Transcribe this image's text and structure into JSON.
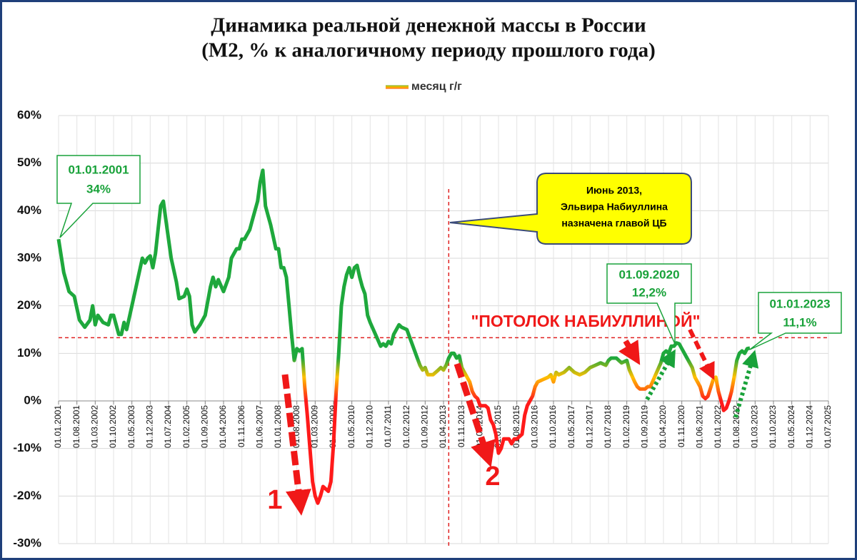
{
  "chart_data": {
    "type": "line",
    "title": [
      "Динамика реальной денежной массы в России",
      "(М2, % к аналогичному периоду прошлого года)"
    ],
    "legend": "top",
    "grid": true,
    "color_scale": [
      {
        "value": 9,
        "color": "#1ea83c"
      },
      {
        "value": 5,
        "color": "#ffc000"
      },
      {
        "value": 0,
        "color": "#ff1a1a"
      }
    ],
    "ylim": [
      -30,
      60
    ],
    "yticks": [
      {
        "value": -30,
        "label": "-30%"
      },
      {
        "value": -20,
        "label": "-20%"
      },
      {
        "value": -10,
        "label": "-10%"
      },
      {
        "value": 0,
        "label": "0%"
      },
      {
        "value": 10,
        "label": "10%"
      },
      {
        "value": 20,
        "label": "20%"
      },
      {
        "value": 30,
        "label": "30%"
      },
      {
        "value": 40,
        "label": "40%"
      },
      {
        "value": 50,
        "label": "50%"
      },
      {
        "value": 60,
        "label": "60%"
      }
    ],
    "xlim": [
      "01.01.2001",
      "01.07.2025"
    ],
    "xticks": [
      "01.01.2001",
      "01.08.2001",
      "01.03.2002",
      "01.10.2002",
      "01.05.2003",
      "01.12.2003",
      "01.07.2004",
      "01.02.2005",
      "01.09.2005",
      "01.04.2006",
      "01.11.2006",
      "01.06.2007",
      "01.01.2008",
      "01.08.2008",
      "01.03.2009",
      "01.10.2009",
      "01.05.2010",
      "01.12.2010",
      "01.07.2011",
      "01.02.2012",
      "01.09.2012",
      "01.04.2013",
      "01.11.2013",
      "01.06.2014",
      "01.01.2015",
      "01.08.2015",
      "01.03.2016",
      "01.10.2016",
      "01.05.2017",
      "01.12.2017",
      "01.07.2018",
      "01.02.2019",
      "01.09.2019",
      "01.04.2020",
      "01.11.2020",
      "01.06.2021",
      "01.01.2022",
      "01.08.2022",
      "01.03.2023",
      "01.10.2023",
      "01.05.2024",
      "01.12.2024",
      "01.07.2025"
    ],
    "x": [
      "01.01.2001",
      "01.03.2001",
      "01.05.2001",
      "01.07.2001",
      "01.09.2001",
      "01.11.2001",
      "01.01.2002",
      "01.02.2002",
      "01.03.2002",
      "01.04.2002",
      "01.06.2002",
      "01.08.2002",
      "01.09.2002",
      "01.10.2002",
      "01.12.2002",
      "01.01.2003",
      "01.02.2003",
      "01.03.2003",
      "01.05.2003",
      "01.07.2003",
      "01.09.2003",
      "01.10.2003",
      "01.11.2003",
      "01.12.2003",
      "01.01.2004",
      "01.02.2004",
      "01.03.2004",
      "01.04.2004",
      "01.05.2004",
      "01.06.2004",
      "01.08.2004",
      "01.10.2004",
      "01.11.2004",
      "01.01.2005",
      "01.02.2005",
      "01.03.2005",
      "01.04.2005",
      "01.05.2005",
      "01.07.2005",
      "01.09.2005",
      "01.11.2005",
      "01.12.2005",
      "01.01.2006",
      "01.02.2006",
      "01.04.2006",
      "01.06.2006",
      "01.07.2006",
      "01.09.2006",
      "01.10.2006",
      "01.11.2006",
      "01.12.2006",
      "01.02.2007",
      "01.03.2007",
      "01.05.2007",
      "01.06.2007",
      "01.07.2007",
      "01.08.2007",
      "01.09.2007",
      "01.10.2007",
      "01.12.2007",
      "01.01.2008",
      "01.02.2008",
      "01.03.2008",
      "01.04.2008",
      "01.05.2008",
      "01.06.2008",
      "01.07.2008",
      "01.08.2008",
      "01.09.2008",
      "01.10.2008",
      "01.11.2008",
      "01.12.2008",
      "01.01.2009",
      "01.02.2009",
      "01.03.2009",
      "01.04.2009",
      "01.05.2009",
      "01.06.2009",
      "01.08.2009",
      "01.09.2009",
      "01.10.2009",
      "01.11.2009",
      "01.12.2009",
      "01.01.2010",
      "01.02.2010",
      "01.03.2010",
      "01.04.2010",
      "01.05.2010",
      "01.06.2010",
      "01.07.2010",
      "01.08.2010",
      "01.09.2010",
      "01.10.2010",
      "01.11.2010",
      "01.12.2010",
      "01.02.2011",
      "01.04.2011",
      "01.05.2011",
      "01.06.2011",
      "01.07.2011",
      "01.08.2011",
      "01.09.2011",
      "01.11.2011",
      "01.12.2011",
      "01.02.2012",
      "01.04.2012",
      "01.06.2012",
      "01.07.2012",
      "01.08.2012",
      "01.09.2012",
      "01.10.2012",
      "01.12.2012",
      "01.02.2013",
      "01.03.2013",
      "01.04.2013",
      "01.05.2013",
      "01.06.2013",
      "01.07.2013",
      "01.08.2013",
      "01.09.2013",
      "01.10.2013",
      "01.11.2013",
      "01.12.2013",
      "01.02.2014",
      "01.03.2014",
      "01.04.2014",
      "01.05.2014",
      "01.06.2014",
      "01.07.2014",
      "01.08.2014",
      "01.09.2014",
      "01.10.2014",
      "01.11.2014",
      "01.12.2014",
      "01.01.2015",
      "01.02.2015",
      "01.03.2015",
      "01.05.2015",
      "01.06.2015",
      "01.07.2015",
      "01.08.2015",
      "01.10.2015",
      "01.11.2015",
      "01.12.2015",
      "01.01.2016",
      "01.02.2016",
      "01.03.2016",
      "01.04.2016",
      "01.06.2016",
      "01.08.2016",
      "01.09.2016",
      "01.10.2016",
      "01.11.2016",
      "01.12.2016",
      "01.02.2017",
      "01.04.2017",
      "01.06.2017",
      "01.08.2017",
      "01.10.2017",
      "01.12.2017",
      "01.02.2018",
      "01.04.2018",
      "01.06.2018",
      "01.07.2018",
      "01.08.2018",
      "01.10.2018",
      "01.12.2018",
      "01.02.2019",
      "01.03.2019",
      "01.05.2019",
      "01.06.2019",
      "01.07.2019",
      "01.09.2019",
      "01.10.2019",
      "01.11.2019",
      "01.01.2020",
      "01.03.2020",
      "01.04.2020",
      "01.05.2020",
      "01.06.2020",
      "01.07.2020",
      "01.08.2020",
      "01.09.2020",
      "01.10.2020",
      "01.11.2020",
      "01.01.2021",
      "01.02.2021",
      "01.03.2021",
      "01.04.2021",
      "01.06.2021",
      "01.07.2021",
      "01.08.2021",
      "01.09.2021",
      "01.11.2021",
      "01.12.2021",
      "01.01.2022",
      "01.02.2022",
      "01.03.2022",
      "01.04.2022",
      "01.05.2022",
      "01.06.2022",
      "01.07.2022",
      "01.08.2022",
      "01.09.2022",
      "01.10.2022",
      "01.11.2022",
      "01.12.2022",
      "01.01.2023"
    ],
    "series": [
      {
        "name": "месяц г/г",
        "values": [
          34,
          27,
          23,
          22,
          17,
          15.5,
          17,
          20,
          16,
          18,
          16.5,
          16,
          18,
          18,
          14,
          14,
          16.5,
          15,
          20,
          25,
          30,
          29,
          30,
          30.5,
          28,
          31,
          36,
          41,
          42,
          38,
          30,
          25,
          21.5,
          22,
          23.5,
          22,
          16,
          14.5,
          16,
          18,
          24,
          26,
          24,
          25.5,
          23,
          26,
          30,
          32,
          32,
          34,
          34,
          36,
          38,
          42,
          46,
          48.5,
          41,
          39,
          37,
          32,
          32,
          28,
          28,
          26,
          20,
          14,
          8.5,
          11,
          10.5,
          11,
          3,
          -3,
          -10,
          -17,
          -20,
          -21.5,
          -20,
          -18,
          -19,
          -17,
          -9,
          2,
          10,
          20,
          24,
          26.5,
          28,
          26,
          28,
          28.5,
          26,
          24,
          22.5,
          18,
          16.5,
          14,
          11.5,
          12,
          11.5,
          12.5,
          12,
          14,
          16,
          15.5,
          15,
          12,
          9,
          7.5,
          6.5,
          7,
          5.5,
          5.5,
          6.5,
          7,
          6.5,
          7.5,
          9,
          10,
          10,
          9,
          9.5,
          7,
          6,
          4,
          2,
          1,
          0.5,
          -1,
          -1,
          -1,
          -1.5,
          -4,
          -5,
          -7,
          -11,
          -10,
          -8,
          -8,
          -9,
          -8,
          -8,
          -7,
          -3,
          -1,
          0,
          1,
          3,
          4,
          4.5,
          5,
          5.5,
          4,
          6,
          5.5,
          6,
          7,
          6,
          5.5,
          6,
          7,
          7.5,
          8,
          7.5,
          8.5,
          9,
          9,
          8,
          8.5,
          6.5,
          4,
          3,
          2.5,
          2.5,
          3,
          3,
          5.5,
          8,
          10,
          10.5,
          10,
          11.5,
          11.5,
          12.2,
          12,
          11,
          9,
          8,
          7,
          5,
          3,
          1,
          0.5,
          1,
          4.5,
          5,
          2,
          0,
          -2,
          -1.5,
          0,
          2,
          5,
          8.5,
          10,
          10.5,
          10,
          11,
          11.1
        ]
      }
    ],
    "hline": {
      "value": 13.3,
      "label": "\"ПОТОЛОК НАБИУЛЛИНОЙ\""
    },
    "vline": "01.06.2013",
    "callout": [
      "Июнь 2013,",
      "Эльвира  Набиуллина",
      "назначена главой ЦБ"
    ],
    "annotations": [
      [
        "01.01.2001",
        "34%"
      ],
      [
        "01.09.2020",
        "12,2%"
      ],
      [
        "01.01.2023",
        "11,1%"
      ]
    ],
    "markers": [
      "1",
      "2"
    ]
  }
}
